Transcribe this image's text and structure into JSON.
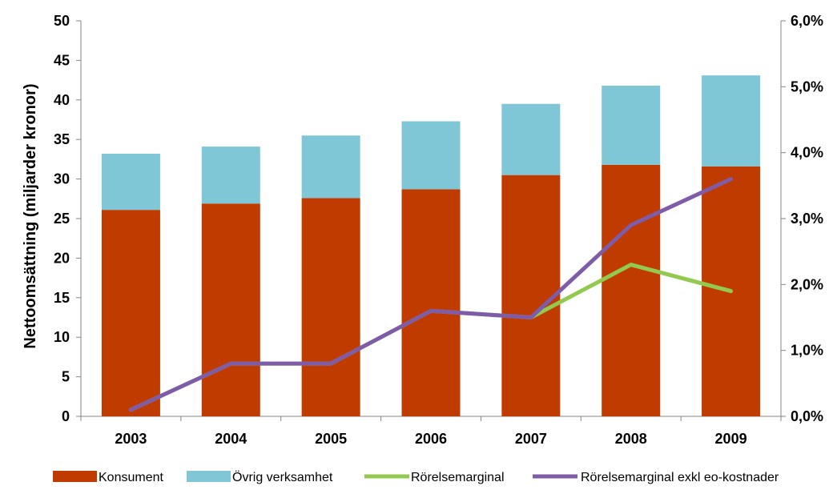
{
  "chart_data": {
    "type": "bar",
    "categories": [
      "2003",
      "2004",
      "2005",
      "2006",
      "2007",
      "2008",
      "2009"
    ],
    "stacked": true,
    "bar_series": [
      {
        "name": "Konsument",
        "color": "#BF3B00",
        "values": [
          26.1,
          26.9,
          27.6,
          28.7,
          30.5,
          31.8,
          31.6
        ]
      },
      {
        "name": "Övrig verksamhet",
        "color": "#7FC6D6",
        "values": [
          7.1,
          7.2,
          7.9,
          8.6,
          9.0,
          10.0,
          11.5
        ]
      }
    ],
    "line_series": [
      {
        "name": "Rörelsemarginal",
        "color": "#92C94E",
        "axis": "right",
        "values": [
          0.001,
          0.008,
          0.008,
          0.016,
          0.015,
          0.023,
          0.019
        ]
      },
      {
        "name": "Rörelsemarginal exkl eo-kostnader",
        "color": "#7E5CA8",
        "axis": "right",
        "values": [
          0.001,
          0.008,
          0.008,
          0.016,
          0.015,
          0.029,
          0.036
        ]
      }
    ],
    "ylabel": "Nettoomsättning (miljarder kronor)",
    "ylim": [
      0,
      50
    ],
    "y_ticks": [
      "0",
      "5",
      "10",
      "15",
      "20",
      "25",
      "30",
      "35",
      "40",
      "45",
      "50"
    ],
    "y2lim": [
      0,
      0.06
    ],
    "y2_ticks": [
      "0,0%",
      "1,0%",
      "2,0%",
      "3,0%",
      "4,0%",
      "5,0%",
      "6,0%"
    ],
    "grid": false,
    "legend_position": "bottom"
  }
}
